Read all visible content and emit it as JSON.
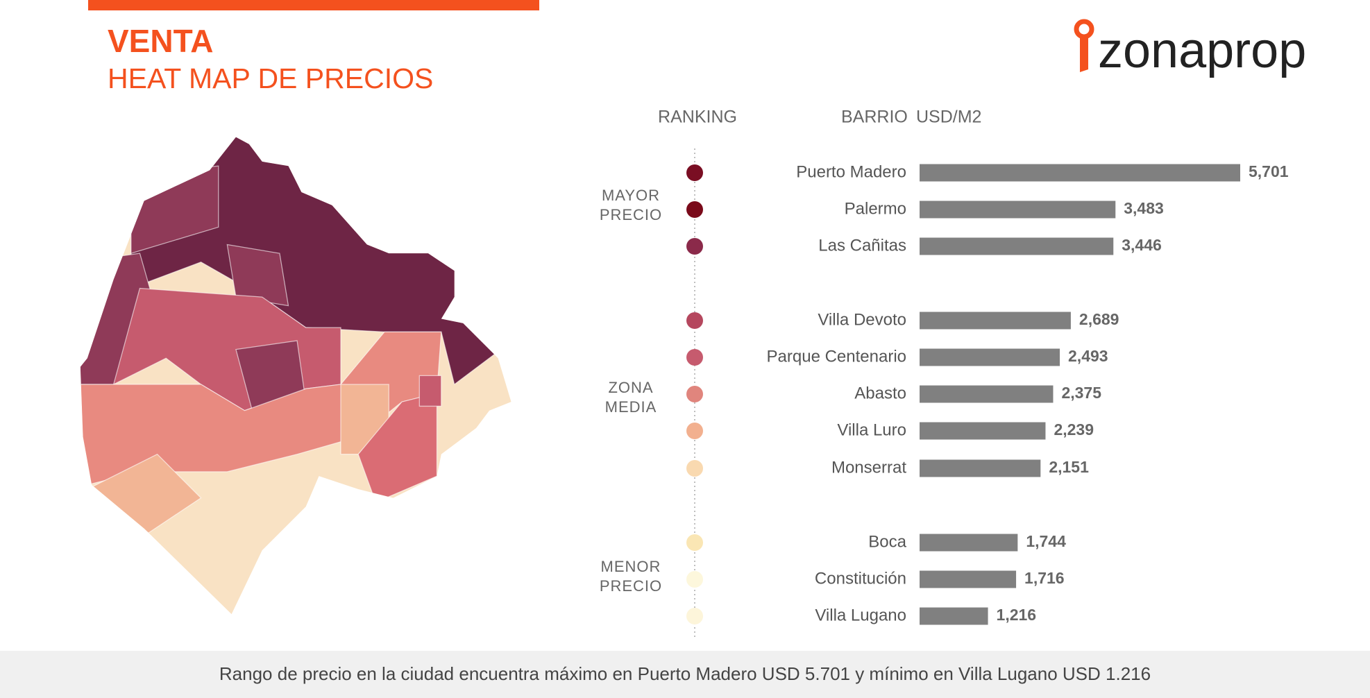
{
  "header": {
    "title": "VENTA",
    "subtitle": "HEAT MAP DE PRECIOS",
    "logo": "zonaprop"
  },
  "chart_data": {
    "type": "bar",
    "ranking_label": "RANKING",
    "category_label": "BARRIO",
    "value_label": "USD/M2",
    "categories": [
      "Puerto Madero",
      "Palermo",
      "Las Cañitas",
      "Villa Devoto",
      "Parque Centenario",
      "Abasto",
      "Villa Luro",
      "Monserrat",
      "Boca",
      "Constitución",
      "Villa Lugano"
    ],
    "values": [
      5701,
      3483,
      3446,
      2689,
      2493,
      2375,
      2239,
      2151,
      1744,
      1716,
      1216
    ],
    "value_labels": [
      "5,701",
      "3,483",
      "3,446",
      "2,689",
      "2,493",
      "2,375",
      "2,239",
      "2,151",
      "1,744",
      "1,716",
      "1,216"
    ],
    "color": "#808080",
    "rank_colors": [
      "#7a0e23",
      "#7a0a1a",
      "#8b2a4a",
      "#b5475e",
      "#c65b6e",
      "#e0857d",
      "#f2b08f",
      "#f9d9b0",
      "#fae6b4",
      "#fdf7dc",
      "#fdf5da"
    ],
    "groups": [
      [
        "MAYOR",
        "PRECIO"
      ],
      [
        "ZONA",
        "MEDIA"
      ],
      [
        "MENOR",
        "PRECIO"
      ]
    ]
  },
  "footer": "Rango de precio en la ciudad encuentra máximo en Puerto Madero USD 5.701 y mínimo en Villa Lugano USD 1.216"
}
